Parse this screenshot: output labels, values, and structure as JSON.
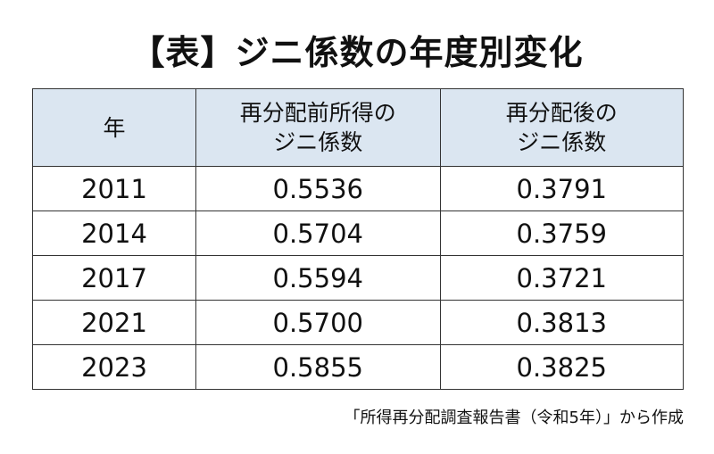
{
  "header": {
    "title": "【表】ジニ係数の年度別変化"
  },
  "table": {
    "columns": [
      [
        "年"
      ],
      [
        "再分配前所得の",
        "ジニ係数"
      ],
      [
        "再分配後の",
        "ジニ係数"
      ]
    ],
    "rows": [
      [
        "2011",
        "0.5536",
        "0.3791"
      ],
      [
        "2014",
        "0.5704",
        "0.3759"
      ],
      [
        "2017",
        "0.5594",
        "0.3721"
      ],
      [
        "2021",
        "0.5700",
        "0.3813"
      ],
      [
        "2023",
        "0.5855",
        "0.3825"
      ]
    ]
  },
  "footer": {
    "source": "「所得再分配調査報告書（令和5年）」から作成"
  }
}
